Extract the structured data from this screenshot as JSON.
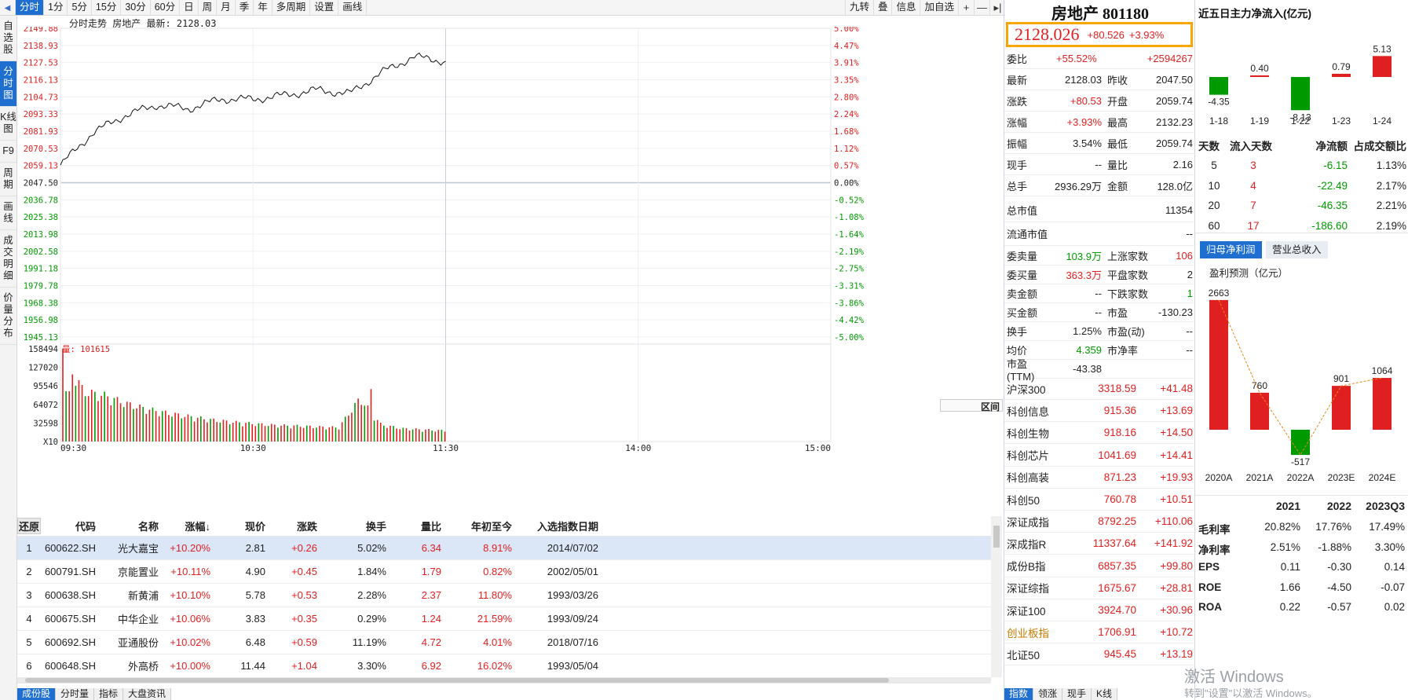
{
  "topbar": {
    "tabs": [
      "分时",
      "1分",
      "5分",
      "15分",
      "30分",
      "60分",
      "日",
      "周",
      "月",
      "季",
      "年",
      "多周期",
      "设置",
      "画线"
    ],
    "active_tab": "分时",
    "right_items": [
      "九转",
      "叠",
      "信息",
      "加自选"
    ],
    "right_icons": [
      "plus-icon",
      "minus-icon",
      "pin-icon"
    ]
  },
  "leftbar": {
    "items": [
      "自选股",
      "分时图",
      "K线图",
      "F9",
      "周期",
      "画线",
      "成交明细",
      "价量分布"
    ],
    "active": "分时图"
  },
  "chart": {
    "title": "分时走势  房地产 最新: 2128.03",
    "prices": [
      "2149.88",
      "2138.93",
      "2127.53",
      "2116.13",
      "2104.73",
      "2093.33",
      "2081.93",
      "2070.53",
      "2059.13",
      "2047.50",
      "2036.78",
      "2025.38",
      "2013.98",
      "2002.58",
      "1991.18",
      "1979.78",
      "1968.38",
      "1956.98",
      "1945.13"
    ],
    "pcts": [
      "5.00%",
      "4.47%",
      "3.91%",
      "3.35%",
      "2.80%",
      "2.24%",
      "1.68%",
      "1.12%",
      "0.57%",
      "0.00%",
      "-0.52%",
      "-1.08%",
      "-1.64%",
      "-2.19%",
      "-2.75%",
      "-3.31%",
      "-3.86%",
      "-4.42%",
      "-5.00%"
    ],
    "volume_label": "量: 101615",
    "vol_ticks": [
      "158494",
      "127020",
      "95546",
      "64072",
      "32598",
      "X10"
    ],
    "time_ticks": [
      "09:30",
      "10:30",
      "11:30",
      "14:00",
      "15:00"
    ],
    "range_button": "区间"
  },
  "chart_data": {
    "type": "line",
    "title": "分时走势",
    "ylim": [
      1945.13,
      2149.88
    ],
    "prev_close": 2047.5,
    "x": [
      "09:30",
      "09:40",
      "09:50",
      "10:00",
      "10:10",
      "10:20",
      "10:30",
      "10:40",
      "10:50",
      "11:00",
      "11:10",
      "11:20",
      "11:30"
    ],
    "series": [
      {
        "values": [
          2059.1,
          2080.5,
          2092.0,
          2099.0,
          2096.5,
          2103.0,
          2102.8,
          2105.5,
          2109.0,
          2106.5,
          2120.5,
          2131.0,
          2128.03
        ]
      }
    ],
    "volume": {
      "ylim": [
        0,
        158494
      ],
      "values": [
        158494,
        92000,
        85000,
        70000,
        60000,
        52000,
        46000,
        40000,
        36000,
        33000,
        30000,
        29000,
        27000,
        26000,
        80000,
        31000,
        24000,
        22000,
        20000
      ]
    }
  },
  "table": {
    "headers": [
      "还原",
      "代码",
      "名称",
      "涨幅↓",
      "现价",
      "涨跌",
      "换手",
      "量比",
      "年初至今",
      "入选指数日期"
    ],
    "rows": [
      [
        "1",
        "600622.SH",
        "光大嘉宝",
        "+10.20%",
        "2.81",
        "+0.26",
        "5.02%",
        "6.34",
        "8.91%",
        "2014/07/02"
      ],
      [
        "2",
        "600791.SH",
        "京能置业",
        "+10.11%",
        "4.90",
        "+0.45",
        "1.84%",
        "1.79",
        "0.82%",
        "2002/05/01"
      ],
      [
        "3",
        "600638.SH",
        "新黄浦",
        "+10.10%",
        "5.78",
        "+0.53",
        "2.28%",
        "2.37",
        "11.80%",
        "1993/03/26"
      ],
      [
        "4",
        "600675.SH",
        "中华企业",
        "+10.06%",
        "3.83",
        "+0.35",
        "0.29%",
        "1.24",
        "21.59%",
        "1993/09/24"
      ],
      [
        "5",
        "600692.SH",
        "亚通股份",
        "+10.02%",
        "6.48",
        "+0.59",
        "11.19%",
        "4.72",
        "4.01%",
        "2018/07/16"
      ],
      [
        "6",
        "600648.SH",
        "外高桥",
        "+10.00%",
        "11.44",
        "+1.04",
        "3.30%",
        "6.92",
        "16.02%",
        "1993/05/04"
      ]
    ]
  },
  "bottomtabs": [
    "成份股",
    "分时量",
    "指标",
    "大盘资讯"
  ],
  "info": {
    "name": "房地产 801180",
    "price": "2128.026",
    "change": "+80.526",
    "change_pct": "+3.93%",
    "weibi": {
      "k": "委比",
      "v1": "+55.52%",
      "v2": "+2594267"
    },
    "pairs": [
      [
        "最新",
        "2128.03",
        "昨收",
        "2047.50"
      ],
      [
        "涨跌",
        "+80.53",
        "开盘",
        "2059.74"
      ],
      [
        "涨幅",
        "+3.93%",
        "最高",
        "2132.23"
      ],
      [
        "振幅",
        "3.54%",
        "最低",
        "2059.74"
      ],
      [
        "现手",
        "--",
        "量比",
        "2.16"
      ],
      [
        "总手",
        "2936.29万",
        "金额",
        "128.0亿"
      ]
    ],
    "singles": [
      [
        "总市值",
        "11354"
      ],
      [
        "流通市值",
        "--"
      ]
    ],
    "pairs2": [
      [
        "委卖量",
        "103.9万",
        "上涨家数",
        "106"
      ],
      [
        "委买量",
        "363.3万",
        "平盘家数",
        "2"
      ],
      [
        "卖金额",
        "--",
        "下跌家数",
        "1"
      ],
      [
        "买金额",
        "--",
        "市盈",
        "-130.23"
      ],
      [
        "换手",
        "1.25%",
        "市盈(动)",
        "--"
      ],
      [
        "均价",
        "4.359",
        "市净率",
        "--"
      ],
      [
        "市盈(TTM)",
        "-43.38",
        "",
        ""
      ]
    ],
    "indices": [
      [
        "沪深300",
        "3318.59",
        "+41.48"
      ],
      [
        "科创信息",
        "915.36",
        "+13.69"
      ],
      [
        "科创生物",
        "918.16",
        "+14.50"
      ],
      [
        "科创芯片",
        "1041.69",
        "+14.41"
      ],
      [
        "科创高装",
        "871.23",
        "+19.93"
      ],
      [
        "科创50",
        "760.78",
        "+10.51"
      ],
      [
        "深证成指",
        "8792.25",
        "+110.06"
      ],
      [
        "深成指R",
        "11337.64",
        "+141.92"
      ],
      [
        "成份B指",
        "6857.35",
        "+99.80"
      ],
      [
        "深证综指",
        "1675.67",
        "+28.81"
      ],
      [
        "深证100",
        "3924.70",
        "+30.96"
      ],
      [
        "创业板指",
        "1706.91",
        "+10.72"
      ],
      [
        "北证50",
        "945.45",
        "+13.19"
      ]
    ],
    "bottom_tabs": [
      "指数",
      "领涨",
      "现手",
      "K线"
    ]
  },
  "flow": {
    "title": "近五日主力净流入(亿元)",
    "bars": [
      {
        "date": "1-18",
        "value": -4.35,
        "label": "-4.35"
      },
      {
        "date": "1-19",
        "value": 0.4,
        "label": "0.40"
      },
      {
        "date": "1-22",
        "value": -8.13,
        "label": "-8.13"
      },
      {
        "date": "1-23",
        "value": 0.79,
        "label": "0.79"
      },
      {
        "date": "1-24",
        "value": 5.13,
        "label": "5.13"
      }
    ],
    "headers": [
      "天数",
      "流入天数",
      "净流额",
      "占成交额比"
    ],
    "rows": [
      [
        "5",
        "3",
        "-6.15",
        "1.13%"
      ],
      [
        "10",
        "4",
        "-22.49",
        "2.17%"
      ],
      [
        "20",
        "7",
        "-46.35",
        "2.21%"
      ],
      [
        "60",
        "17",
        "-186.60",
        "2.19%"
      ]
    ]
  },
  "profit": {
    "tabs": [
      "归母净利润",
      "营业总收入"
    ],
    "subtitle": "盈利预测（亿元）",
    "bars": [
      {
        "year": "2020A",
        "value": 2663,
        "label": "2663"
      },
      {
        "year": "2021A",
        "value": 760,
        "label": "760"
      },
      {
        "year": "2022A",
        "value": -517,
        "label": "-517"
      },
      {
        "year": "2023E",
        "value": 901,
        "label": "901"
      },
      {
        "year": "2024E",
        "value": 1064,
        "label": "1064"
      }
    ]
  },
  "fin": {
    "headers": [
      "",
      "2021",
      "2022",
      "2023Q3"
    ],
    "rows": [
      [
        "毛利率",
        "20.82%",
        "17.76%",
        "17.49%"
      ],
      [
        "净利率",
        "2.51%",
        "-1.88%",
        "3.30%"
      ],
      [
        "EPS",
        "0.11",
        "-0.30",
        "0.14"
      ],
      [
        "ROE",
        "1.66",
        "-4.50",
        "-0.07"
      ],
      [
        "ROA",
        "0.22",
        "-0.57",
        "0.02"
      ]
    ]
  },
  "watermark": {
    "line1": "激活 Windows",
    "line2": "转到\"设置\"以激活 Windows。"
  },
  "colors": {
    "up": "#e02020",
    "down": "#009a00",
    "accent": "#1f6fd0",
    "highlight": "#f5a700"
  }
}
